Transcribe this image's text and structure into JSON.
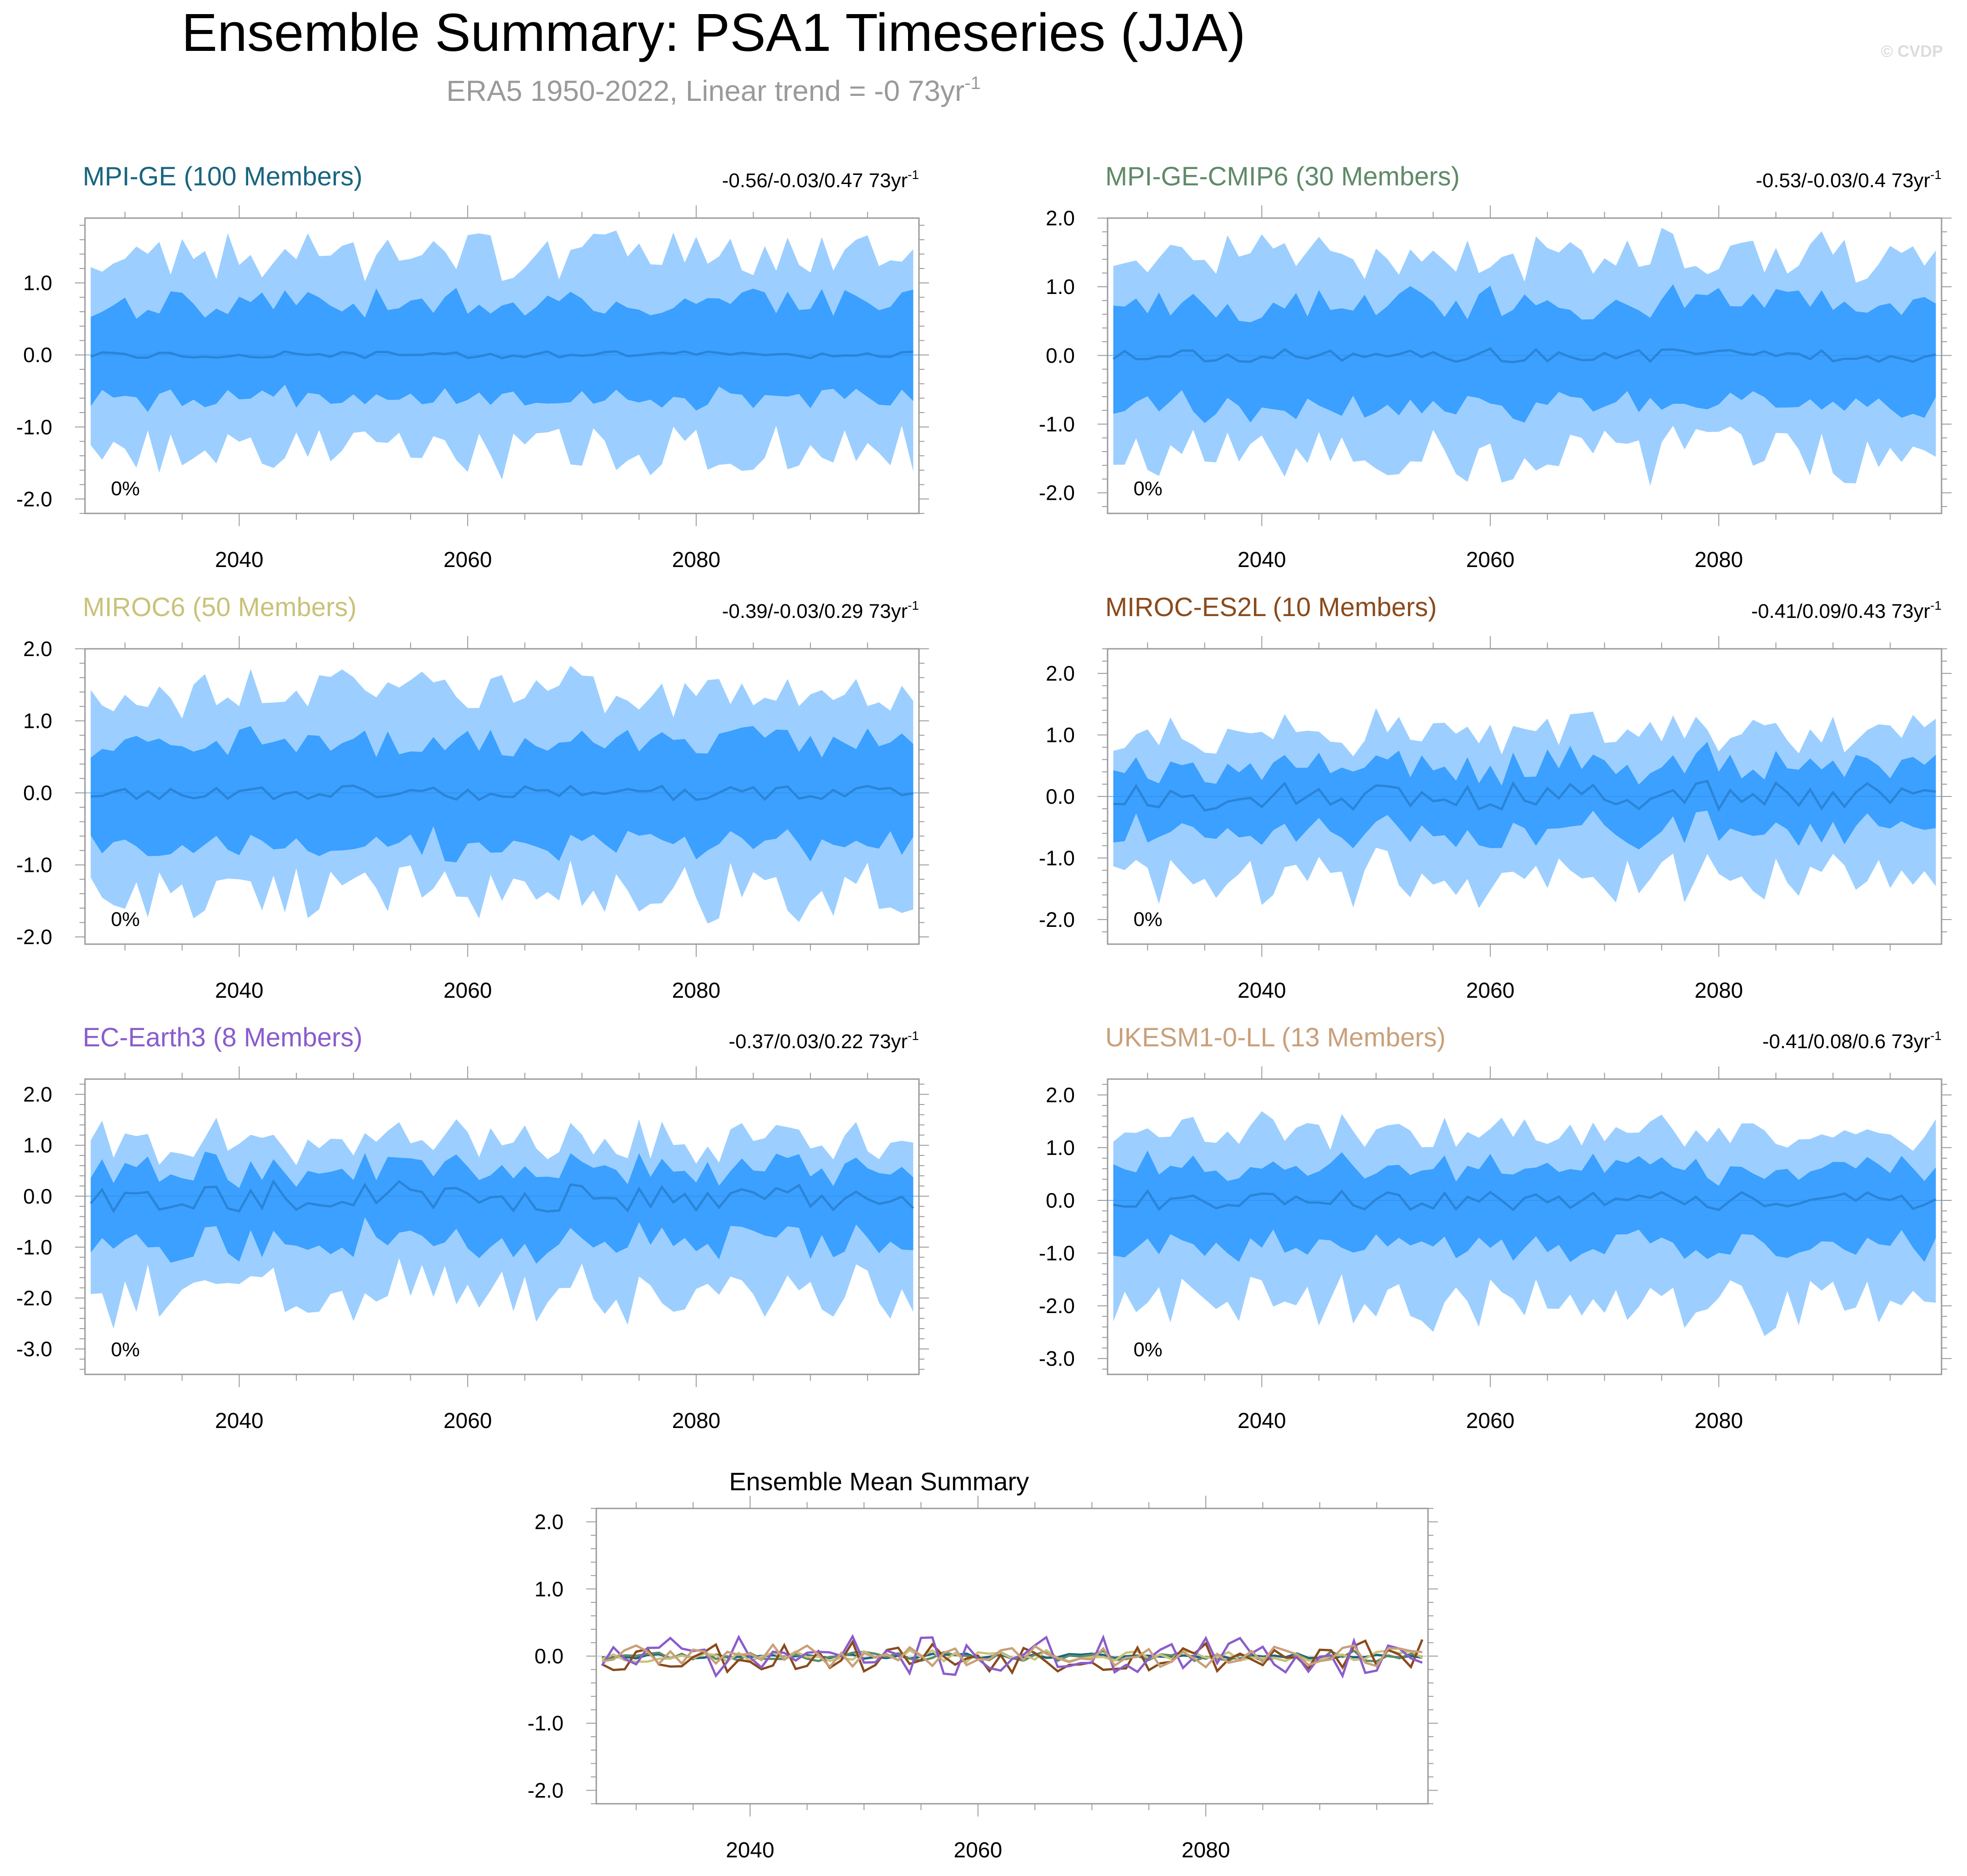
{
  "header": {
    "title": "Ensemble Summary: PSA1 Timeseries (JJA)",
    "subtitle_prefix": "ERA5 1950-2022, Linear trend = -0 73yr",
    "subtitle_sup": "-1",
    "watermark": "© CVDP"
  },
  "colors": {
    "outer_band": "#9ccfff",
    "inner_band": "#3ba0ff",
    "mean_line": "#2b84d6",
    "axis": "#9a9a9a",
    "tick_text": "#000000"
  },
  "chart_data": [
    {
      "type": "area",
      "title": "MPI-GE (100 Members)",
      "title_color": "#18657f",
      "trend": "-0.56/-0.03/0.47 73yr",
      "trend_sup": "-1",
      "pct_label": "0%",
      "ylim": [
        -2.2,
        1.9
      ],
      "yticks": [
        {
          "v": 1,
          "label": "1.0"
        },
        {
          "v": 0,
          "label": "0.0"
        },
        {
          "v": -1,
          "label": "-1.0"
        },
        {
          "v": -2,
          "label": "-2.0"
        }
      ],
      "xlim": [
        2026.5,
        2099.5
      ],
      "xticks": [
        2040,
        2060,
        2080
      ],
      "band_outer": [
        1.3,
        1.3
      ],
      "band_inner": [
        0.7,
        0.6
      ],
      "mean_amp": 0.05,
      "seed": 11
    },
    {
      "type": "area",
      "title": "MPI-GE-CMIP6 (30 Members)",
      "title_color": "#5f8a68",
      "trend": "-0.53/-0.03/0.4 73yr",
      "trend_sup": "-1",
      "pct_label": "0%",
      "ylim": [
        -2.3,
        2.0
      ],
      "yticks": [
        {
          "v": 2,
          "label": "2.0"
        },
        {
          "v": 1,
          "label": "1.0"
        },
        {
          "v": 0,
          "label": "0.0"
        },
        {
          "v": -1,
          "label": "-1.0"
        },
        {
          "v": -2,
          "label": "-2.0"
        }
      ],
      "xlim": [
        2026.5,
        2099.5
      ],
      "xticks": [
        2040,
        2060,
        2080
      ],
      "band_outer": [
        1.35,
        1.45
      ],
      "band_inner": [
        0.75,
        0.7
      ],
      "mean_amp": 0.1,
      "seed": 23
    },
    {
      "type": "area",
      "title": "MIROC6 (50 Members)",
      "title_color": "#c9c27a",
      "trend": "-0.39/-0.03/0.29 73yr",
      "trend_sup": "-1",
      "pct_label": "0%",
      "ylim": [
        -2.1,
        2.0
      ],
      "yticks": [
        {
          "v": 2,
          "label": "2.0"
        },
        {
          "v": 1,
          "label": "1.0"
        },
        {
          "v": 0,
          "label": "0.0"
        },
        {
          "v": -1,
          "label": "-1.0"
        },
        {
          "v": -2,
          "label": "-2.0"
        }
      ],
      "xlim": [
        2026.5,
        2099.5
      ],
      "xticks": [
        2040,
        2060,
        2080
      ],
      "band_outer": [
        1.3,
        1.35
      ],
      "band_inner": [
        0.7,
        0.7
      ],
      "mean_amp": 0.1,
      "seed": 37
    },
    {
      "type": "area",
      "title": "MIROC-ES2L (10 Members)",
      "title_color": "#8a4a1c",
      "trend": "-0.41/0.09/0.43 73yr",
      "trend_sup": "-1",
      "pct_label": "0%",
      "ylim": [
        -2.4,
        2.4
      ],
      "yticks": [
        {
          "v": 2,
          "label": "2.0"
        },
        {
          "v": 1,
          "label": "1.0"
        },
        {
          "v": 0,
          "label": "0.0"
        },
        {
          "v": -1,
          "label": "-1.0"
        },
        {
          "v": -2,
          "label": "-2.0"
        }
      ],
      "xlim": [
        2026.5,
        2099.5
      ],
      "xticks": [
        2040,
        2060,
        2080
      ],
      "band_outer": [
        1.0,
        1.25
      ],
      "band_inner": [
        0.5,
        0.55
      ],
      "mean_amp": 0.25,
      "seed": 53
    },
    {
      "type": "area",
      "title": "EC-Earth3 (8 Members)",
      "title_color": "#8a5ccc",
      "trend": "-0.37/0.03/0.22 73yr",
      "trend_sup": "-1",
      "pct_label": "0%",
      "ylim": [
        -3.5,
        2.3
      ],
      "yticks": [
        {
          "v": 2,
          "label": "2.0"
        },
        {
          "v": 1,
          "label": "1.0"
        },
        {
          "v": 0,
          "label": "0.0"
        },
        {
          "v": -1,
          "label": "-1.0"
        },
        {
          "v": -2,
          "label": "-2.0"
        },
        {
          "v": -3,
          "label": "-3.0"
        }
      ],
      "xlim": [
        2026.5,
        2099.5
      ],
      "xticks": [
        2040,
        2060,
        2080
      ],
      "band_outer": [
        1.05,
        1.8
      ],
      "band_inner": [
        0.55,
        0.85
      ],
      "mean_amp": 0.3,
      "seed": 71
    },
    {
      "type": "area",
      "title": "UKESM1-0-LL (13 Members)",
      "title_color": "#c9a07a",
      "trend": "-0.41/0.08/0.6 73yr",
      "trend_sup": "-1",
      "pct_label": "0%",
      "ylim": [
        -3.3,
        2.3
      ],
      "yticks": [
        {
          "v": 2,
          "label": "2.0"
        },
        {
          "v": 1,
          "label": "1.0"
        },
        {
          "v": 0,
          "label": "0.0"
        },
        {
          "v": -1,
          "label": "-1.0"
        },
        {
          "v": -2,
          "label": "-2.0"
        },
        {
          "v": -3,
          "label": "-3.0"
        }
      ],
      "xlim": [
        2026.5,
        2099.5
      ],
      "xticks": [
        2040,
        2060,
        2080
      ],
      "band_outer": [
        1.2,
        1.9
      ],
      "band_inner": [
        0.6,
        0.85
      ],
      "mean_amp": 0.18,
      "seed": 89
    },
    {
      "type": "line",
      "title": "Ensemble Mean Summary",
      "title_color": "#000000",
      "ylim": [
        -2.2,
        2.2
      ],
      "yticks": [
        {
          "v": 2,
          "label": "2.0"
        },
        {
          "v": 1,
          "label": "1.0"
        },
        {
          "v": 0,
          "label": "0.0"
        },
        {
          "v": -1,
          "label": "-1.0"
        },
        {
          "v": -2,
          "label": "-2.0"
        }
      ],
      "xlim": [
        2026.5,
        2099.5
      ],
      "xticks": [
        2040,
        2060,
        2080
      ],
      "series": [
        {
          "name": "MPI-GE",
          "color": "#18657f",
          "amp": 0.04,
          "seed": 11
        },
        {
          "name": "MPI-GE-CMIP6",
          "color": "#5f8a68",
          "amp": 0.08,
          "seed": 23
        },
        {
          "name": "MIROC6",
          "color": "#c9c27a",
          "amp": 0.09,
          "seed": 37
        },
        {
          "name": "MIROC-ES2L",
          "color": "#8a4a1c",
          "amp": 0.25,
          "seed": 53
        },
        {
          "name": "EC-Earth3",
          "color": "#8a5ccc",
          "amp": 0.3,
          "seed": 71
        },
        {
          "name": "UKESM1-0-LL",
          "color": "#c9a07a",
          "amp": 0.17,
          "seed": 89
        }
      ]
    }
  ]
}
